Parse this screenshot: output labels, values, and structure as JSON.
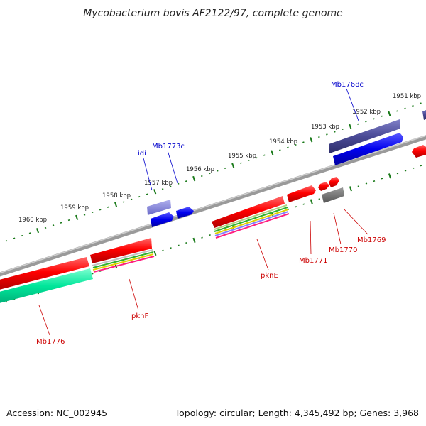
{
  "title": "Mycobacterium bovis AF2122/97, complete genome",
  "footer": {
    "accession": "Accession: NC_002945",
    "info": "Topology: circular; Length: 4,345,492 bp; Genes: 3,968"
  },
  "colors": {
    "backbone": "#8a8a8a",
    "ticks": "#1a7a1a",
    "label_forward": "#0000cc",
    "label_reverse": "#cc0000"
  },
  "kbp_labels": [
    "1951 kbp",
    "1952 kbp",
    "1953 kbp",
    "1954 kbp",
    "1955 kbp",
    "1956 kbp",
    "1957 kbp",
    "1958 kbp",
    "1959 kbp",
    "1960 kbp"
  ],
  "gene_labels": {
    "mb1768c": "Mb1768c",
    "mb1773c": "Mb1773c",
    "idi": "idi",
    "pkne": "pknE",
    "pknf": "pknF",
    "mb1776": "Mb1776",
    "mb1771": "Mb1771",
    "mb1770": "Mb1770",
    "mb1769": "Mb1769"
  }
}
